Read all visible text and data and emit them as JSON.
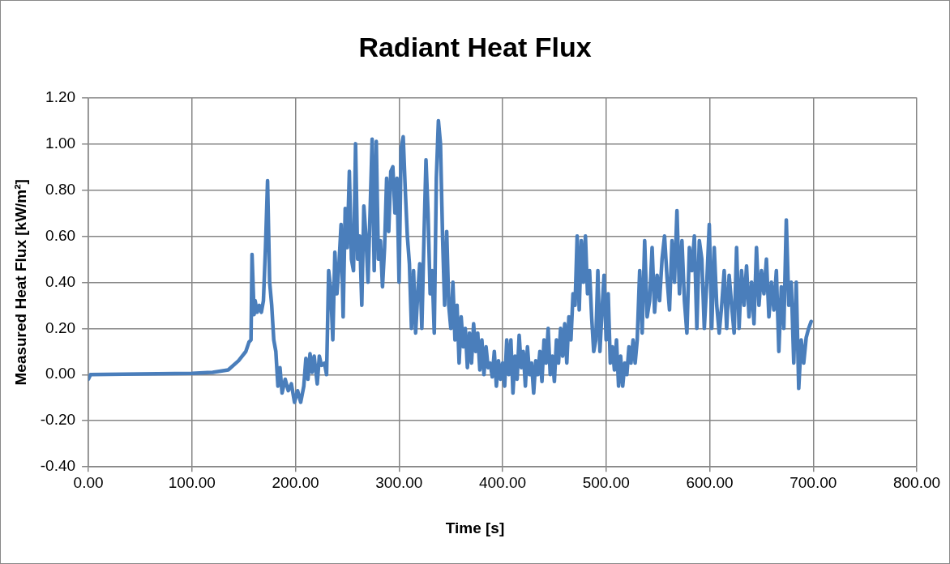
{
  "chart_data": {
    "type": "line",
    "title": "Radiant Heat Flux",
    "xlabel": "Time [s]",
    "ylabel": "Measured Heat Flux [kW/m²]",
    "xlim": [
      0,
      800
    ],
    "xticks": [
      {
        "value": 0,
        "label": "0.00"
      },
      {
        "value": 100,
        "label": "100.00"
      },
      {
        "value": 200,
        "label": "200.00"
      },
      {
        "value": 300,
        "label": "300.00"
      },
      {
        "value": 400,
        "label": "400.00"
      },
      {
        "value": 500,
        "label": "500.00"
      },
      {
        "value": 600,
        "label": "600.00"
      },
      {
        "value": 700,
        "label": "700.00"
      },
      {
        "value": 800,
        "label": "800.00"
      }
    ],
    "ylim": [
      -0.4,
      1.2
    ],
    "yticks": [
      {
        "value": -0.4,
        "label": "-0.40"
      },
      {
        "value": -0.2,
        "label": "-0.20"
      },
      {
        "value": 0,
        "label": "0.00"
      },
      {
        "value": 0.2,
        "label": "0.20"
      },
      {
        "value": 0.4,
        "label": "0.40"
      },
      {
        "value": 0.6,
        "label": "0.60"
      },
      {
        "value": 0.8,
        "label": "0.80"
      },
      {
        "value": 1,
        "label": "1.00"
      },
      {
        "value": 1.2,
        "label": "1.20"
      }
    ],
    "grid": true,
    "legend": false,
    "marker": "none",
    "line_style": "solid",
    "series": [
      {
        "color": "#4a7ebb",
        "x": [
          0,
          2,
          50,
          100,
          120,
          135,
          145,
          152,
          155,
          157,
          158,
          160,
          161,
          163,
          165,
          167,
          169,
          171,
          173,
          175,
          177,
          179,
          181,
          183,
          185,
          187,
          190,
          193,
          196,
          199,
          202,
          205,
          208,
          210,
          212,
          214,
          216,
          218,
          221,
          223,
          225,
          228,
          230,
          232,
          234,
          236,
          238,
          240,
          242,
          244,
          246,
          248,
          250,
          252,
          254,
          256,
          258,
          260,
          262,
          264,
          266,
          268,
          270,
          272,
          274,
          276,
          278,
          280,
          282,
          284,
          286,
          288,
          290,
          292,
          294,
          296,
          298,
          300,
          302,
          304,
          306,
          308,
          310,
          312,
          314,
          316,
          318,
          320,
          322,
          324,
          326,
          328,
          330,
          332,
          334,
          336,
          338,
          340,
          342,
          344,
          346,
          348,
          350,
          352,
          354,
          356,
          358,
          360,
          362,
          364,
          366,
          368,
          370,
          372,
          374,
          376,
          378,
          380,
          382,
          384,
          386,
          388,
          390,
          392,
          394,
          396,
          398,
          400,
          402,
          404,
          406,
          408,
          410,
          412,
          414,
          416,
          418,
          420,
          422,
          424,
          426,
          428,
          430,
          432,
          434,
          436,
          438,
          440,
          442,
          444,
          446,
          448,
          450,
          452,
          454,
          456,
          458,
          460,
          462,
          464,
          466,
          468,
          470,
          472,
          474,
          476,
          478,
          480,
          482,
          484,
          486,
          488,
          490,
          492,
          494,
          496,
          498,
          500,
          502,
          504,
          506,
          508,
          510,
          512,
          514,
          516,
          518,
          520,
          522,
          524,
          526,
          528,
          530,
          532.4,
          534.8,
          537.2,
          539.6,
          542,
          544.4,
          546.8,
          549.2,
          551.6,
          554,
          556.4,
          558.8,
          561.2,
          563.6,
          566,
          568.4,
          570.8,
          573.2,
          575.6,
          578,
          580.4,
          582.8,
          585.2,
          587.6,
          590,
          592.4,
          594.8,
          597.2,
          599.6,
          602,
          604.4,
          606.8,
          609.2,
          611.6,
          614,
          616.4,
          618.8,
          621.2,
          623.6,
          626,
          628.4,
          630.8,
          633.2,
          635.6,
          638,
          640.4,
          642.8,
          645.2,
          647.6,
          650,
          652.4,
          654.8,
          657.2,
          659.6,
          662,
          664.4,
          666.8,
          669.2,
          671.6,
          674,
          676.4,
          678.8,
          681.2,
          683.6,
          686,
          688.4,
          690.8,
          693.2,
          695.6,
          698
        ],
        "values": [
          -0.02,
          0,
          0.003,
          0.005,
          0.01,
          0.02,
          0.06,
          0.1,
          0.14,
          0.15,
          0.52,
          0.26,
          0.32,
          0.27,
          0.3,
          0.27,
          0.32,
          0.55,
          0.84,
          0.4,
          0.3,
          0.15,
          0.1,
          -0.05,
          0.03,
          -0.08,
          -0.02,
          -0.07,
          -0.04,
          -0.12,
          -0.07,
          -0.12,
          -0.05,
          0.07,
          -0.02,
          0.09,
          0.01,
          0.08,
          -0.04,
          0.08,
          0.04,
          0.05,
          0,
          0.45,
          0.37,
          0.15,
          0.53,
          0.35,
          0.48,
          0.65,
          0.25,
          0.72,
          0.55,
          0.88,
          0.5,
          0.45,
          1,
          0.5,
          0.6,
          0.3,
          0.73,
          0.6,
          0.4,
          0.7,
          1.02,
          0.45,
          1.01,
          0.5,
          0.58,
          0.38,
          0.55,
          0.85,
          0.62,
          0.88,
          0.9,
          0.7,
          0.85,
          0.4,
          0.98,
          1.03,
          0.8,
          0.6,
          0.48,
          0.2,
          0.45,
          0.18,
          0.35,
          0.48,
          0.2,
          0.58,
          0.93,
          0.7,
          0.35,
          0.45,
          0.18,
          0.85,
          1.1,
          1,
          0.6,
          0.3,
          0.62,
          0.3,
          0.2,
          0.4,
          0.15,
          0.3,
          0.05,
          0.25,
          0.12,
          0.2,
          0.03,
          0.18,
          0.05,
          0.22,
          0.1,
          0.18,
          0.02,
          0.15,
          0,
          0.12,
          0.03,
          0.05,
          -0.01,
          0.1,
          -0.05,
          0.06,
          -0.02,
          0.05,
          -0.05,
          0.15,
          0,
          0.15,
          -0.08,
          0.08,
          -0.02,
          0.17,
          0.03,
          0.1,
          -0.05,
          0.12,
          0,
          0.05,
          -0.08,
          0.06,
          0,
          0.1,
          -0.03,
          0.15,
          0.05,
          0.2,
          0,
          0.08,
          -0.03,
          0.15,
          0.05,
          0.2,
          0.08,
          0.22,
          0.05,
          0.25,
          0.15,
          0.35,
          0.3,
          0.6,
          0.28,
          0.58,
          0.4,
          0.6,
          0.35,
          0.45,
          0.25,
          0.1,
          0.15,
          0.45,
          0.1,
          0.28,
          0.43,
          0.15,
          0.35,
          0.05,
          0.12,
          0.02,
          0.15,
          -0.05,
          0.08,
          -0.05,
          0.05,
          0,
          0.12,
          0.05,
          0.15,
          0.05,
          0.15,
          0.45,
          0.18,
          0.58,
          0.25,
          0.32,
          0.55,
          0.27,
          0.43,
          0.32,
          0.5,
          0.6,
          0.42,
          0.28,
          0.58,
          0.4,
          0.71,
          0.35,
          0.58,
          0.32,
          0.18,
          0.55,
          0.45,
          0.6,
          0.2,
          0.58,
          0.5,
          0.2,
          0.4,
          0.65,
          0.2,
          0.55,
          0.3,
          0.18,
          0.3,
          0.45,
          0.2,
          0.43,
          0.3,
          0.18,
          0.55,
          0.2,
          0.45,
          0.3,
          0.47,
          0.25,
          0.4,
          0.22,
          0.55,
          0.3,
          0.45,
          0.35,
          0.5,
          0.25,
          0.4,
          0.28,
          0.45,
          0.1,
          0.38,
          0.2,
          0.67,
          0.3,
          0.4,
          0.05,
          0.4,
          -0.06,
          0.15,
          0.05,
          0.16,
          0.2,
          0.23
        ]
      }
    ]
  }
}
